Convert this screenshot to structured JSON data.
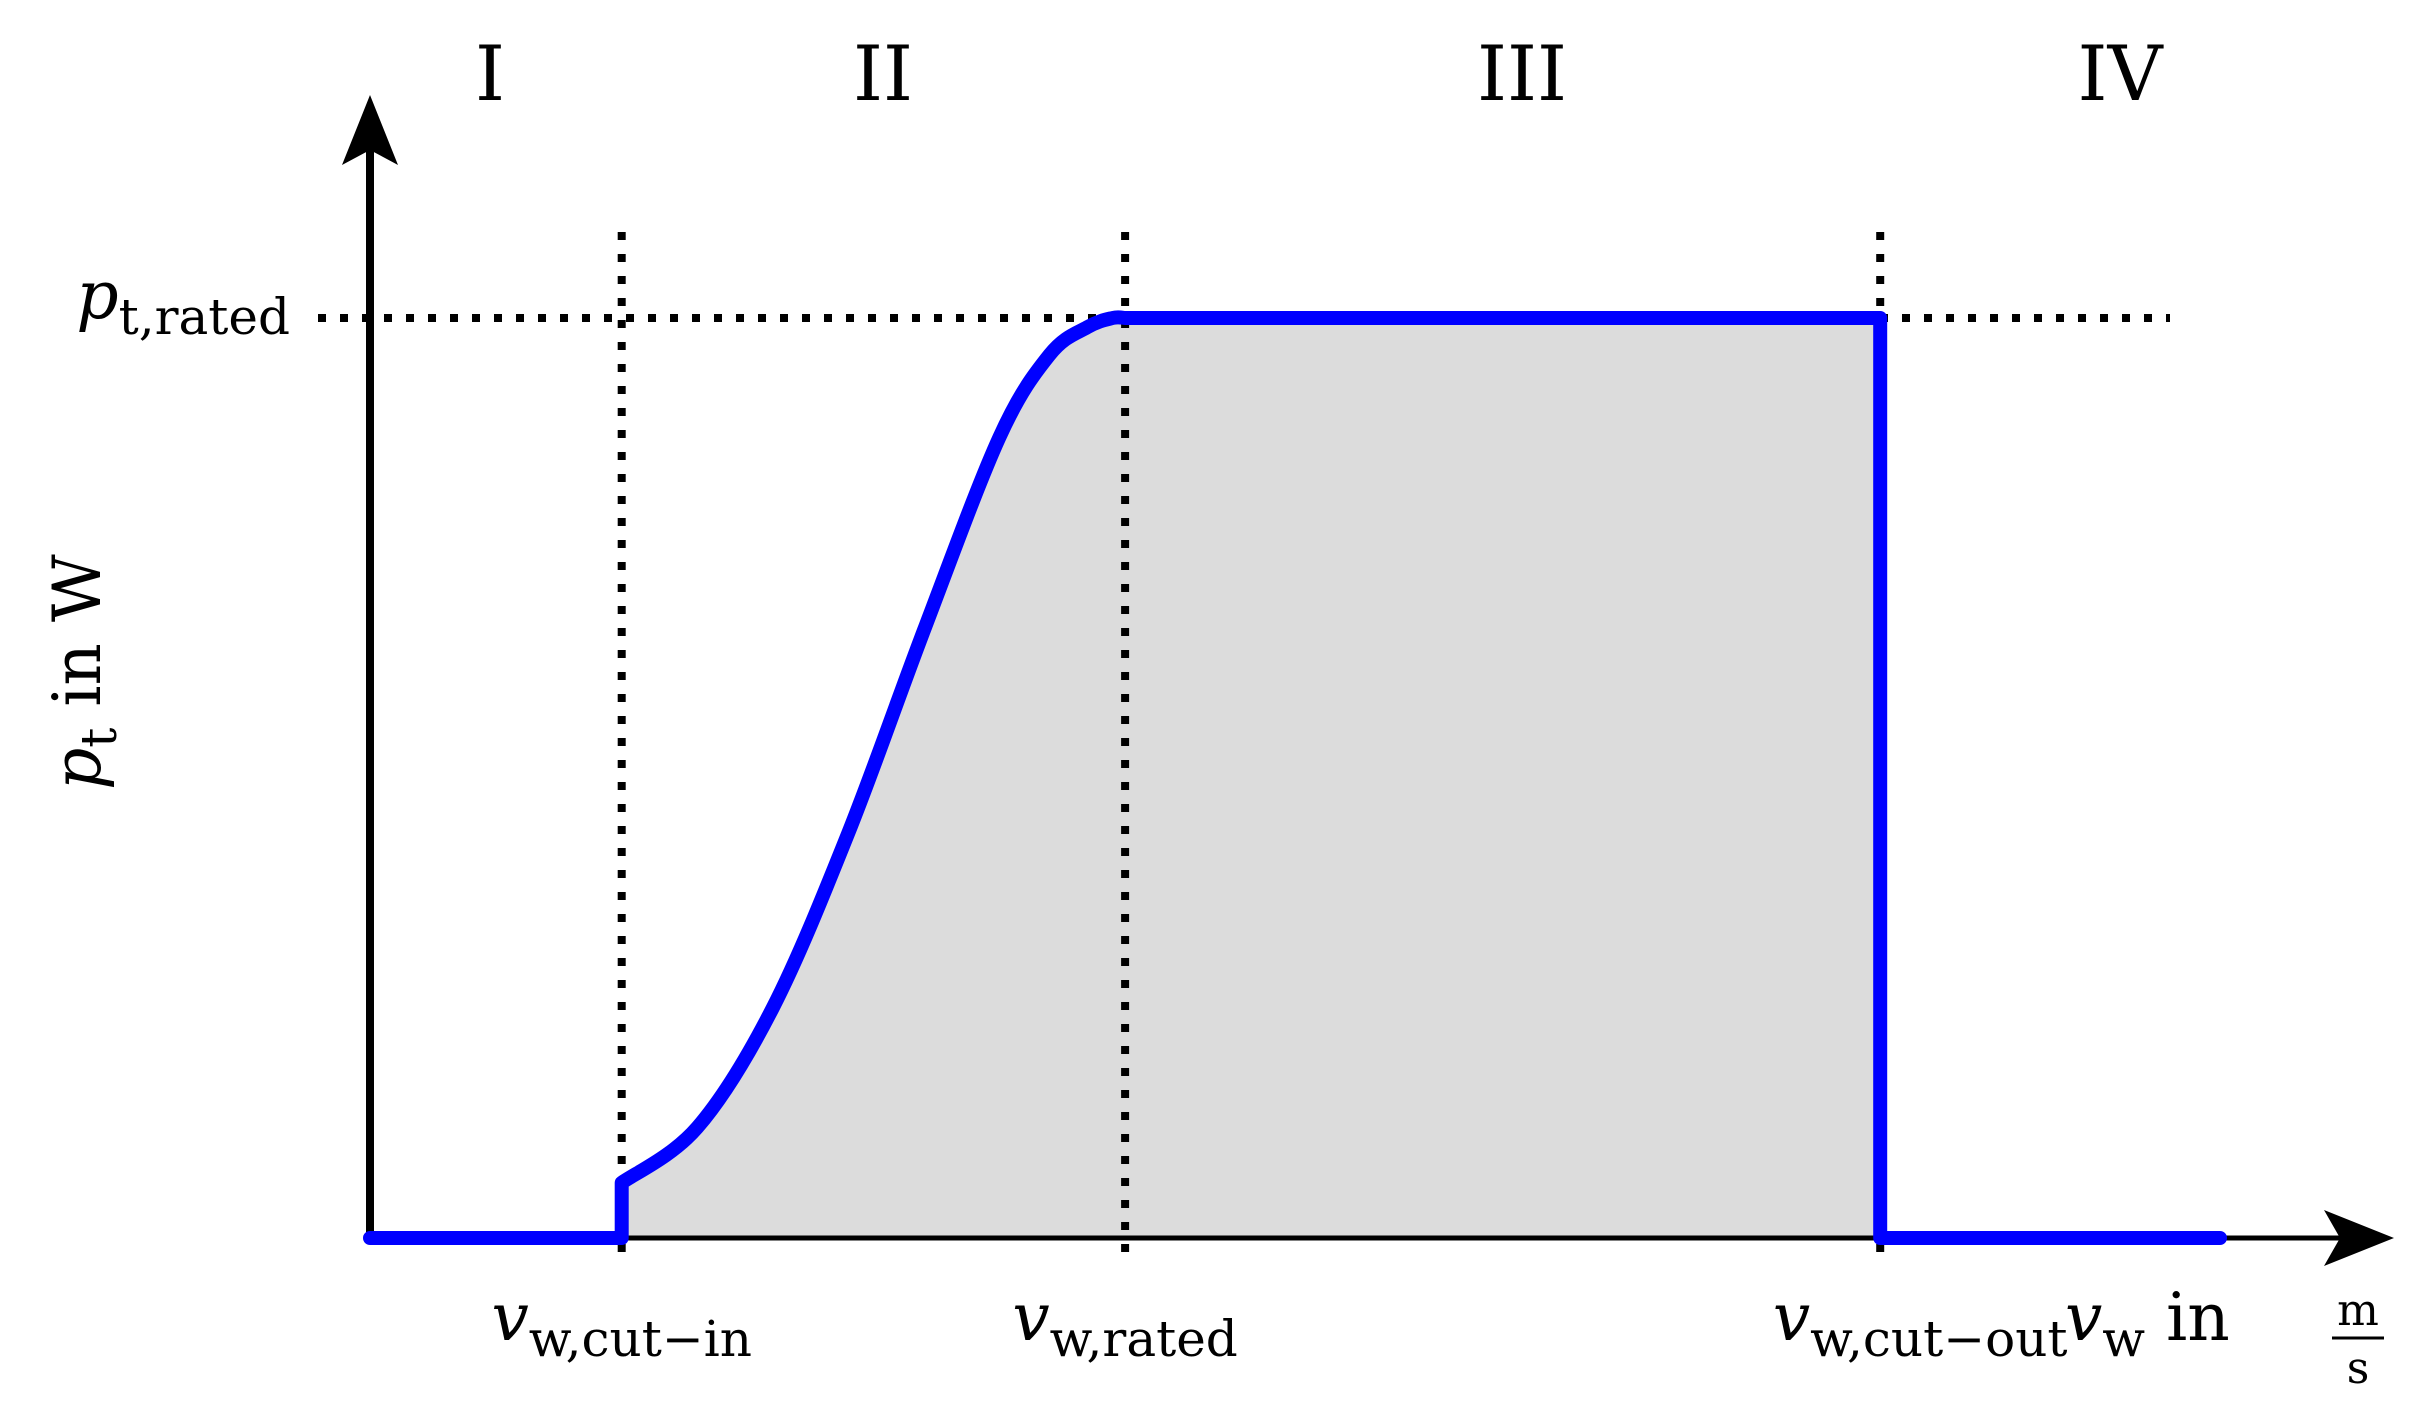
{
  "chart_data": {
    "type": "area",
    "regions": [
      {
        "label": "I"
      },
      {
        "label": "II"
      },
      {
        "label": "III"
      },
      {
        "label": "IV"
      }
    ],
    "x_ticks": [
      {
        "main": "v",
        "sub": "w,cut−in",
        "value": 1
      },
      {
        "main": "v",
        "sub": "w,rated",
        "value": 3
      },
      {
        "main": "v",
        "sub": "w,cut−out",
        "value": 6
      }
    ],
    "y_ticks": [
      {
        "main": "p",
        "sub": "t,rated",
        "value": 1
      }
    ],
    "xlabel": {
      "var": "v",
      "sub": "w",
      "text": " in ",
      "unit_num": "m",
      "unit_den": "s"
    },
    "ylabel": {
      "var": "p",
      "sub": "t",
      "text": " in W"
    },
    "xlim": [
      0,
      7.35
    ],
    "ylim": [
      0,
      1
    ],
    "series": [
      {
        "x": [
          0,
          1,
          1,
          1.3,
          1.6,
          1.9,
          2.2,
          2.5,
          2.7,
          2.85,
          2.95,
          3.0,
          6.0,
          6.0,
          7.35
        ],
        "y": [
          0,
          0,
          0.06,
          0.12,
          0.25,
          0.44,
          0.66,
          0.87,
          0.96,
          0.99,
          1.0,
          1.0,
          1.0,
          0,
          0
        ]
      }
    ],
    "colors": {
      "curve": "#0000ff",
      "fill": "#dcdcdc",
      "axes": "#000000",
      "guides": "#000000"
    },
    "grid": false,
    "legend": "none"
  }
}
